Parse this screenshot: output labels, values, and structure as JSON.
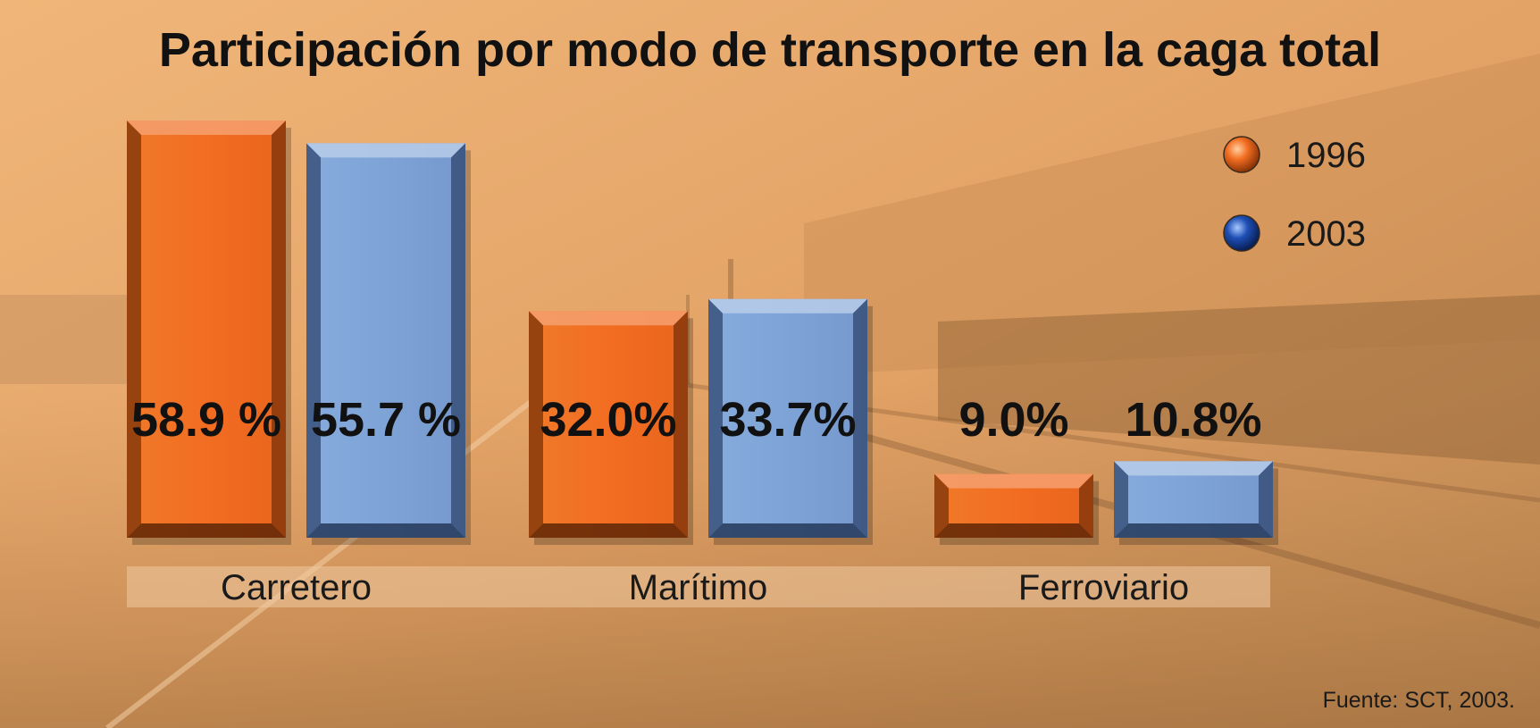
{
  "chart_data": {
    "type": "bar",
    "title": "Participación por modo de transporte en la caga total",
    "categories": [
      "Carretero",
      "Marítimo",
      "Ferroviario"
    ],
    "series": [
      {
        "name": "1996",
        "values": [
          58.9,
          32.0,
          9.0
        ],
        "labels": [
          "58.9 %",
          "32.0%",
          "9.0%"
        ],
        "color": "#f26d21"
      },
      {
        "name": "2003",
        "values": [
          55.7,
          33.7,
          10.8
        ],
        "labels": [
          "55.7 %",
          "33.7%",
          "10.8%"
        ],
        "color": "#7ea3d6"
      }
    ],
    "ylim": [
      0,
      60
    ],
    "grid": false,
    "legend": "top-right",
    "source": "Fuente: SCT, 2003.",
    "colors": {
      "background": "#e8a868",
      "background_dark": "#a7733f",
      "band": "#efc9a0"
    }
  }
}
